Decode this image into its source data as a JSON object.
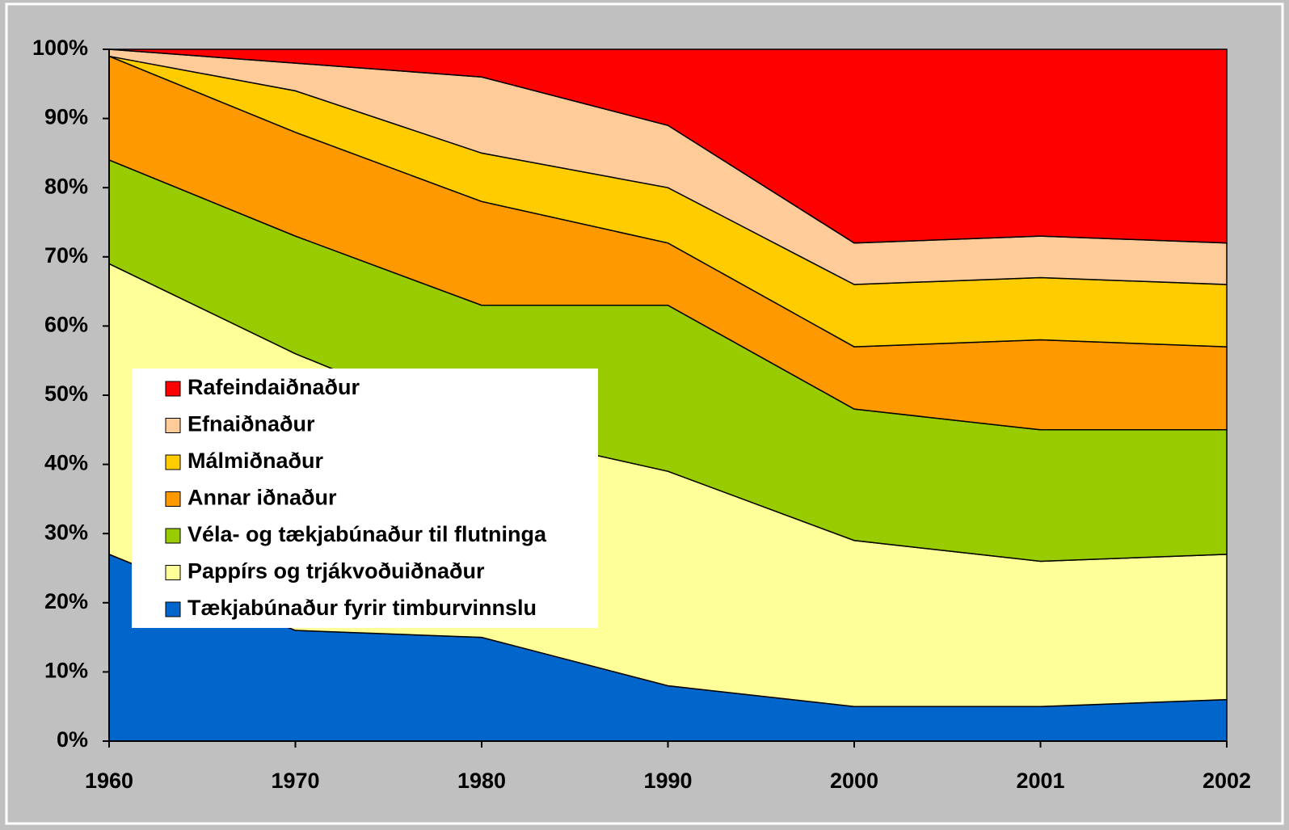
{
  "chart_data": {
    "type": "stacked_area",
    "categories": [
      "1960",
      "1970",
      "1980",
      "1990",
      "2000",
      "2001",
      "2002"
    ],
    "series": [
      {
        "name": "Tækjabúnaður fyrir timburvinnslu",
        "color": "#0066cc",
        "values": [
          27,
          16,
          15,
          8,
          5,
          5,
          6
        ]
      },
      {
        "name": "Pappírs og trjákvoðuiðnaður",
        "color": "#ffff99",
        "values": [
          42,
          40,
          30,
          31,
          24,
          21,
          21
        ]
      },
      {
        "name": "Véla- og tækjabúnaður til flutninga",
        "color": "#99cc00",
        "values": [
          15,
          17,
          18,
          24,
          19,
          19,
          18
        ]
      },
      {
        "name": "Annar iðnaður",
        "color": "#ff9900",
        "values": [
          15,
          15,
          15,
          9,
          9,
          13,
          12
        ]
      },
      {
        "name": "Málmiðnaður",
        "color": "#ffcc00",
        "values": [
          0,
          6,
          7,
          8,
          9,
          9,
          9
        ]
      },
      {
        "name": "Efnaiðnaður",
        "color": "#ffcc99",
        "values": [
          1,
          4,
          11,
          9,
          6,
          6,
          6
        ]
      },
      {
        "name": "Rafeindaiðnaður",
        "color": "#ff0000",
        "values": [
          0,
          2,
          4,
          11,
          28,
          27,
          28
        ]
      }
    ],
    "ylim": [
      0,
      100
    ],
    "yticks": [
      {
        "value": 0,
        "label": "0%"
      },
      {
        "value": 10,
        "label": "10%"
      },
      {
        "value": 20,
        "label": "20%"
      },
      {
        "value": 30,
        "label": "30%"
      },
      {
        "value": 40,
        "label": "40%"
      },
      {
        "value": 50,
        "label": "50%"
      },
      {
        "value": 60,
        "label": "60%"
      },
      {
        "value": 70,
        "label": "70%"
      },
      {
        "value": 80,
        "label": "80%"
      },
      {
        "value": 90,
        "label": "90%"
      },
      {
        "value": 100,
        "label": "100%"
      }
    ],
    "legend": "left",
    "grid": false
  }
}
